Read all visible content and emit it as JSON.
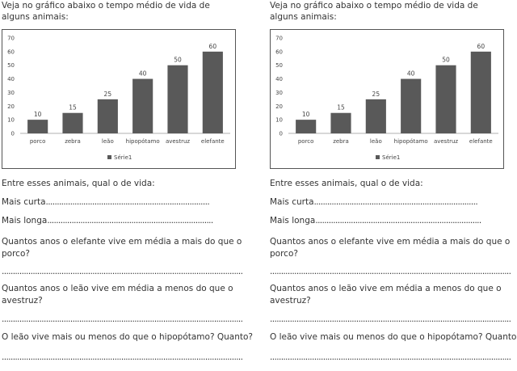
{
  "worksheet": {
    "intro": "Veja no gráfico abaixo o tempo médio de vida de alguns animais:",
    "q_title": "Entre esses animais, qual o de vida:",
    "q_short_label": "Mais curta",
    "q_short_fill": "..........................................................................",
    "q_long_label": "Mais longa",
    "q_long_fill": "...........................................................................",
    "q2": "Quantos anos o elefante vive em média a mais do que o porco?",
    "q3": "Quantos anos o leão vive em média a menos do que o avestruz?",
    "q4": "O leão vive mais ou menos do que o hipopótamo? Quanto?",
    "answer_line": "............................................................................................................................................"
  },
  "chart_data": {
    "type": "bar",
    "categories": [
      "porco",
      "zebra",
      "leão",
      "hipopótamo",
      "avestruz",
      "elefante"
    ],
    "series": [
      {
        "name": "Série1",
        "values": [
          10,
          15,
          25,
          40,
          50,
          60
        ]
      }
    ],
    "ylim": [
      0,
      70
    ],
    "yticks": [
      0,
      10,
      20,
      30,
      40,
      50,
      60,
      70
    ],
    "grid": false,
    "legend": "bottom",
    "bar_color": "#595959"
  }
}
